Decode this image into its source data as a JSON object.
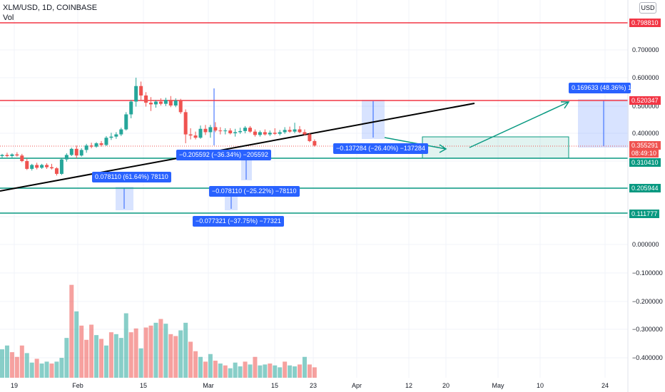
{
  "header": {
    "title": "XLM/USD, 1D, COINBASE",
    "vol_label": "Vol",
    "currency_button": "USD"
  },
  "y_axis": {
    "ticks": [
      "0.700000",
      "0.600000",
      "0.500000",
      "0.400000",
      "0.000000",
      "−0.100000",
      "−0.200000",
      "−0.300000",
      "−0.400000"
    ]
  },
  "x_axis": {
    "ticks": [
      "19",
      "Feb",
      "15",
      "Mar",
      "15",
      "23",
      "Apr",
      "12",
      "20",
      "May",
      "10",
      "24"
    ]
  },
  "price_tags": {
    "resistance_high": "0.798810",
    "resistance": "0.520347",
    "current_price": "0.355291",
    "countdown": "08:49:10",
    "support_1": "0.310410",
    "support_2": "0.205944",
    "support_3": "0.111777"
  },
  "measurements": [
    "0.078110 (61.64%) 78110",
    "−0.205592 (−36.34%) −205592",
    "−0.078110 (−25.22%) −78110",
    "−0.077321 (−37.75%) −77321",
    "−0.137284 (−26.40%) −137284",
    "0.169633 (48.36%) 169633"
  ],
  "colors": {
    "up": "#26a69a",
    "down": "#ef5350",
    "resistance": "#f23645",
    "support": "#089981",
    "measure": "#2962ff",
    "trendline": "#000000"
  },
  "candles": [
    [
      0.318,
      0.326,
      0.31,
      0.322
    ],
    [
      0.322,
      0.33,
      0.314,
      0.318
    ],
    [
      0.318,
      0.328,
      0.312,
      0.324
    ],
    [
      0.324,
      0.332,
      0.316,
      0.32
    ],
    [
      0.32,
      0.326,
      0.296,
      0.3
    ],
    [
      0.3,
      0.308,
      0.268,
      0.272
    ],
    [
      0.272,
      0.29,
      0.266,
      0.286
    ],
    [
      0.286,
      0.294,
      0.27,
      0.276
    ],
    [
      0.276,
      0.29,
      0.272,
      0.286
    ],
    [
      0.286,
      0.292,
      0.272,
      0.278
    ],
    [
      0.278,
      0.29,
      0.27,
      0.274
    ],
    [
      0.274,
      0.278,
      0.248,
      0.254
    ],
    [
      0.254,
      0.31,
      0.25,
      0.306
    ],
    [
      0.306,
      0.328,
      0.298,
      0.322
    ],
    [
      0.322,
      0.348,
      0.318,
      0.344
    ],
    [
      0.344,
      0.356,
      0.31,
      0.32
    ],
    [
      0.32,
      0.346,
      0.316,
      0.34
    ],
    [
      0.34,
      0.362,
      0.33,
      0.356
    ],
    [
      0.356,
      0.366,
      0.346,
      0.352
    ],
    [
      0.352,
      0.368,
      0.348,
      0.364
    ],
    [
      0.364,
      0.372,
      0.352,
      0.358
    ],
    [
      0.358,
      0.39,
      0.354,
      0.384
    ],
    [
      0.384,
      0.402,
      0.376,
      0.388
    ],
    [
      0.388,
      0.404,
      0.38,
      0.396
    ],
    [
      0.396,
      0.42,
      0.39,
      0.414
    ],
    [
      0.414,
      0.476,
      0.41,
      0.468
    ],
    [
      0.468,
      0.52,
      0.454,
      0.514
    ],
    [
      0.514,
      0.6,
      0.496,
      0.57
    ],
    [
      0.57,
      0.586,
      0.52,
      0.536
    ],
    [
      0.536,
      0.548,
      0.496,
      0.51
    ],
    [
      0.51,
      0.53,
      0.48,
      0.504
    ],
    [
      0.504,
      0.52,
      0.492,
      0.514
    ],
    [
      0.514,
      0.526,
      0.5,
      0.506
    ],
    [
      0.506,
      0.528,
      0.498,
      0.52
    ],
    [
      0.52,
      0.534,
      0.494,
      0.5
    ],
    [
      0.5,
      0.526,
      0.494,
      0.518
    ],
    [
      0.518,
      0.524,
      0.47,
      0.476
    ],
    [
      0.476,
      0.486,
      0.364,
      0.396
    ],
    [
      0.396,
      0.418,
      0.378,
      0.392
    ],
    [
      0.392,
      0.406,
      0.378,
      0.384
    ],
    [
      0.384,
      0.428,
      0.38,
      0.416
    ],
    [
      0.416,
      0.43,
      0.394,
      0.404
    ],
    [
      0.404,
      0.43,
      0.384,
      0.422
    ],
    [
      0.422,
      0.44,
      0.404,
      0.41
    ],
    [
      0.41,
      0.422,
      0.396,
      0.408
    ],
    [
      0.408,
      0.418,
      0.396,
      0.41
    ],
    [
      0.41,
      0.418,
      0.396,
      0.4
    ],
    [
      0.4,
      0.416,
      0.388,
      0.404
    ],
    [
      0.404,
      0.42,
      0.398,
      0.408
    ],
    [
      0.408,
      0.426,
      0.4,
      0.42
    ],
    [
      0.42,
      0.426,
      0.402,
      0.406
    ],
    [
      0.406,
      0.414,
      0.388,
      0.394
    ],
    [
      0.394,
      0.41,
      0.388,
      0.404
    ],
    [
      0.404,
      0.414,
      0.392,
      0.396
    ],
    [
      0.396,
      0.41,
      0.39,
      0.402
    ],
    [
      0.402,
      0.418,
      0.394,
      0.398
    ],
    [
      0.398,
      0.412,
      0.392,
      0.404
    ],
    [
      0.404,
      0.422,
      0.398,
      0.412
    ],
    [
      0.412,
      0.424,
      0.402,
      0.406
    ],
    [
      0.406,
      0.438,
      0.4,
      0.414
    ],
    [
      0.414,
      0.426,
      0.4,
      0.404
    ],
    [
      0.404,
      0.414,
      0.392,
      0.396
    ],
    [
      0.396,
      0.402,
      0.368,
      0.372
    ],
    [
      0.372,
      0.378,
      0.352,
      0.356
    ]
  ],
  "volumes": [
    [
      0.3,
      1
    ],
    [
      0.34,
      1
    ],
    [
      0.27,
      0
    ],
    [
      0.22,
      0
    ],
    [
      0.34,
      0
    ],
    [
      0.26,
      1
    ],
    [
      0.16,
      1
    ],
    [
      0.2,
      0
    ],
    [
      0.15,
      1
    ],
    [
      0.17,
      1
    ],
    [
      0.15,
      0
    ],
    [
      0.17,
      1
    ],
    [
      0.21,
      1
    ],
    [
      0.42,
      1
    ],
    [
      0.98,
      0
    ],
    [
      0.7,
      1
    ],
    [
      0.55,
      0
    ],
    [
      0.4,
      0
    ],
    [
      0.56,
      0
    ],
    [
      0.45,
      1
    ],
    [
      0.41,
      0
    ],
    [
      0.34,
      1
    ],
    [
      0.48,
      0
    ],
    [
      0.46,
      1
    ],
    [
      0.42,
      1
    ],
    [
      0.68,
      1
    ],
    [
      0.48,
      0
    ],
    [
      0.52,
      0
    ],
    [
      0.31,
      1
    ],
    [
      0.53,
      0
    ],
    [
      0.55,
      0
    ],
    [
      0.58,
      1
    ],
    [
      0.62,
      0
    ],
    [
      0.57,
      1
    ],
    [
      0.46,
      0
    ],
    [
      0.44,
      0
    ],
    [
      0.5,
      1
    ],
    [
      0.58,
      1
    ],
    [
      0.38,
      0
    ],
    [
      0.28,
      0
    ],
    [
      0.22,
      1
    ],
    [
      0.17,
      0
    ],
    [
      0.25,
      1
    ],
    [
      0.18,
      0
    ],
    [
      0.15,
      1
    ],
    [
      0.13,
      0
    ],
    [
      0.1,
      1
    ],
    [
      0.16,
      1
    ],
    [
      0.12,
      1
    ],
    [
      0.17,
      0
    ],
    [
      0.14,
      1
    ],
    [
      0.22,
      0
    ],
    [
      0.13,
      1
    ],
    [
      0.14,
      1
    ],
    [
      0.15,
      0
    ],
    [
      0.13,
      1
    ],
    [
      0.11,
      1
    ],
    [
      0.17,
      0
    ],
    [
      0.13,
      1
    ],
    [
      0.12,
      1
    ],
    [
      0.14,
      0
    ],
    [
      0.22,
      1
    ],
    [
      0.14,
      0
    ],
    [
      0.11,
      0
    ]
  ]
}
